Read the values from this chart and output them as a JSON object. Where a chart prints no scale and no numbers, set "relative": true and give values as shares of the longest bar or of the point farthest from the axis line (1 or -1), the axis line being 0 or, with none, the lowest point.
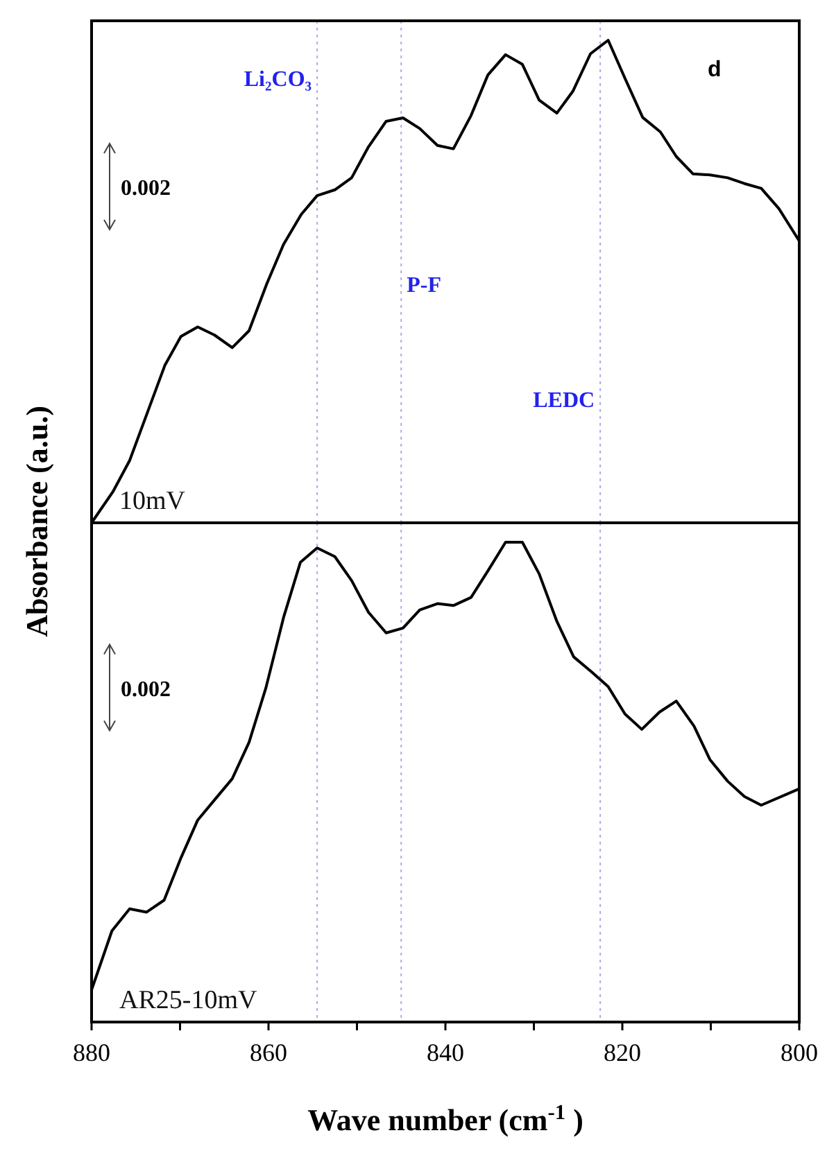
{
  "chart_data": [
    {
      "type": "line",
      "ylabel": "Absorbance (a.u.)",
      "relative": true,
      "xlim": [
        880,
        800
      ],
      "tick_labels": false,
      "grid": false,
      "marker": "none",
      "line_style": "solid",
      "annotations": [
        "0.002",
        "d"
      ],
      "ref_lines": [
        {
          "axis": "x",
          "value": 854.5,
          "label": "Li₂CO₃",
          "color": "#aaaaee",
          "line_style": "dotted"
        },
        {
          "axis": "x",
          "value": 845,
          "label": "P-F",
          "color": "#aaaaee",
          "line_style": "dotted"
        },
        {
          "axis": "x",
          "value": 822.5,
          "label": "LEDC",
          "color": "#aaaaee",
          "line_style": "dotted"
        }
      ],
      "x": [
        880,
        877.6,
        875.7,
        873.6,
        871.7,
        869.9,
        868.0,
        866.1,
        864.1,
        862.2,
        860.2,
        858.3,
        856.3,
        854.5,
        852.5,
        850.6,
        848.7,
        846.7,
        844.8,
        842.9,
        840.9,
        839.1,
        837.1,
        835.2,
        833.2,
        831.3,
        829.4,
        827.4,
        825.6,
        823.6,
        821.6,
        819.7,
        817.7,
        815.7,
        813.9,
        812.0,
        810.1,
        808.1,
        806.2,
        804.3,
        802.3,
        800
      ],
      "series": [
        {
          "name": "10mV",
          "color": "#000000",
          "values": [
            0,
            0.064,
            0.129,
            0.233,
            0.327,
            0.386,
            0.406,
            0.389,
            0.363,
            0.398,
            0.495,
            0.577,
            0.639,
            0.678,
            0.69,
            0.715,
            0.779,
            0.832,
            0.839,
            0.817,
            0.782,
            0.775,
            0.844,
            0.928,
            0.97,
            0.95,
            0.876,
            0.849,
            0.894,
            0.972,
            1,
            0.921,
            0.84,
            0.81,
            0.759,
            0.723,
            0.721,
            0.715,
            0.703,
            0.693,
            0.651,
            0.584
          ]
        }
      ]
    },
    {
      "type": "line",
      "xlabel": "Wave number (cm$^{-1}$ )",
      "relative": true,
      "xlim": [
        880,
        800
      ],
      "xticks": [
        880,
        {
          "value": 870,
          "label": null
        },
        860,
        {
          "value": 850,
          "label": null
        },
        840,
        {
          "value": 830,
          "label": null
        },
        820,
        {
          "value": 810,
          "label": null
        },
        800
      ],
      "tick_labels": "x",
      "grid": false,
      "marker": "none",
      "line_style": "solid",
      "annotations": [
        "0.002"
      ],
      "ref_lines": [
        {
          "axis": "x",
          "value": 854.5,
          "color": "#aaaaee",
          "line_style": "dotted"
        },
        {
          "axis": "x",
          "value": 845,
          "color": "#aaaaee",
          "line_style": "dotted"
        },
        {
          "axis": "x",
          "value": 822.5,
          "color": "#aaaaee",
          "line_style": "dotted"
        }
      ],
      "x": [
        880,
        877.7,
        875.7,
        873.8,
        871.8,
        869.9,
        868.0,
        866.1,
        864.1,
        862.2,
        860.3,
        858.3,
        856.4,
        854.5,
        852.5,
        850.6,
        848.7,
        846.7,
        844.8,
        842.9,
        840.9,
        839.1,
        837.1,
        835.1,
        833.2,
        831.3,
        829.4,
        827.4,
        825.5,
        823.5,
        821.6,
        819.7,
        817.8,
        815.8,
        813.9,
        811.9,
        810.1,
        808.1,
        806.2,
        804.3,
        800
      ],
      "series": [
        {
          "name": "AR25-10mV",
          "color": "#000000",
          "values": [
            0.067,
            0.19,
            0.236,
            0.229,
            0.254,
            0.342,
            0.421,
            0.463,
            0.507,
            0.583,
            0.696,
            0.843,
            0.958,
            0.988,
            0.97,
            0.92,
            0.854,
            0.811,
            0.821,
            0.859,
            0.872,
            0.868,
            0.885,
            0.943,
            1,
            1,
            0.934,
            0.835,
            0.761,
            0.73,
            0.699,
            0.642,
            0.61,
            0.646,
            0.669,
            0.617,
            0.547,
            0.502,
            0.47,
            0.452,
            0.486
          ]
        }
      ]
    }
  ]
}
